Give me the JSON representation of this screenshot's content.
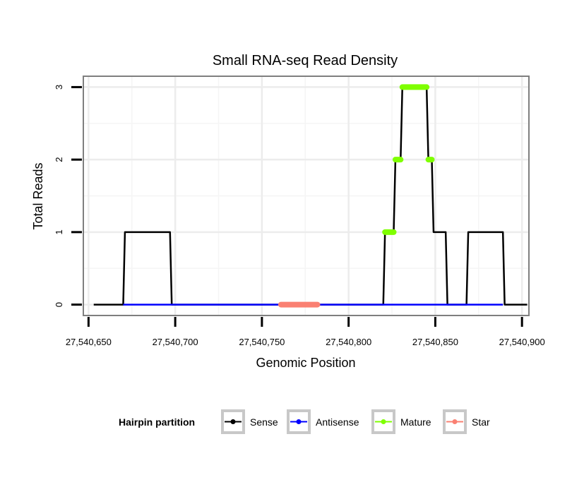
{
  "chart_data": {
    "type": "line",
    "title": "Small RNA-seq Read Density",
    "xlabel": "Genomic Position",
    "ylabel": "Total Reads",
    "xlim": [
      27540647,
      27540904
    ],
    "ylim": [
      -0.15,
      3.15
    ],
    "x_ticks": [
      {
        "value": 27540650,
        "label": "27,540,650"
      },
      {
        "value": 27540700,
        "label": "27,540,700"
      },
      {
        "value": 27540750,
        "label": "27,540,750"
      },
      {
        "value": 27540800,
        "label": "27,540,800"
      },
      {
        "value": 27540850,
        "label": "27,540,850"
      },
      {
        "value": 27540900,
        "label": "27,540,900"
      }
    ],
    "y_ticks": [
      {
        "value": 0,
        "label": "0"
      },
      {
        "value": 1,
        "label": "1"
      },
      {
        "value": 2,
        "label": "2"
      },
      {
        "value": 3,
        "label": "3"
      }
    ],
    "grid": true,
    "legend_position": "bottom",
    "legend_title": "Hairpin partition",
    "series": [
      {
        "name": "Sense",
        "color": "#000000",
        "kind": "line",
        "points": [
          [
            27540653,
            0
          ],
          [
            27540670,
            0
          ],
          [
            27540671,
            1
          ],
          [
            27540697,
            1
          ],
          [
            27540698,
            0
          ],
          [
            27540820,
            0
          ],
          [
            27540821,
            1
          ],
          [
            27540826,
            1
          ],
          [
            27540827,
            2
          ],
          [
            27540830,
            2
          ],
          [
            27540831,
            3
          ],
          [
            27540845,
            3
          ],
          [
            27540846,
            2
          ],
          [
            27540848,
            2
          ],
          [
            27540849,
            1
          ],
          [
            27540856,
            1
          ],
          [
            27540857,
            0
          ],
          [
            27540868,
            0
          ],
          [
            27540869,
            1
          ],
          [
            27540889,
            1
          ],
          [
            27540890,
            0
          ],
          [
            27540903,
            0
          ]
        ]
      },
      {
        "name": "Antisense",
        "color": "#0000ff",
        "kind": "line",
        "points": [
          [
            27540670,
            0
          ],
          [
            27540697,
            0
          ],
          [
            27540820,
            0
          ],
          [
            27540856,
            0
          ],
          [
            27540868,
            0
          ],
          [
            27540889,
            0
          ]
        ]
      },
      {
        "name": "Mature",
        "color": "#7fff00",
        "kind": "marks",
        "segments": [
          {
            "x": [
              27540821,
              27540826
            ],
            "y": 1
          },
          {
            "x": [
              27540827,
              27540830
            ],
            "y": 2
          },
          {
            "x": [
              27540831,
              27540845
            ],
            "y": 3
          },
          {
            "x": [
              27540846,
              27540848
            ],
            "y": 2
          }
        ]
      },
      {
        "name": "Star",
        "color": "#fa8072",
        "kind": "marks",
        "segments": [
          {
            "x": [
              27540761,
              27540782
            ],
            "y": 0
          }
        ]
      }
    ]
  }
}
